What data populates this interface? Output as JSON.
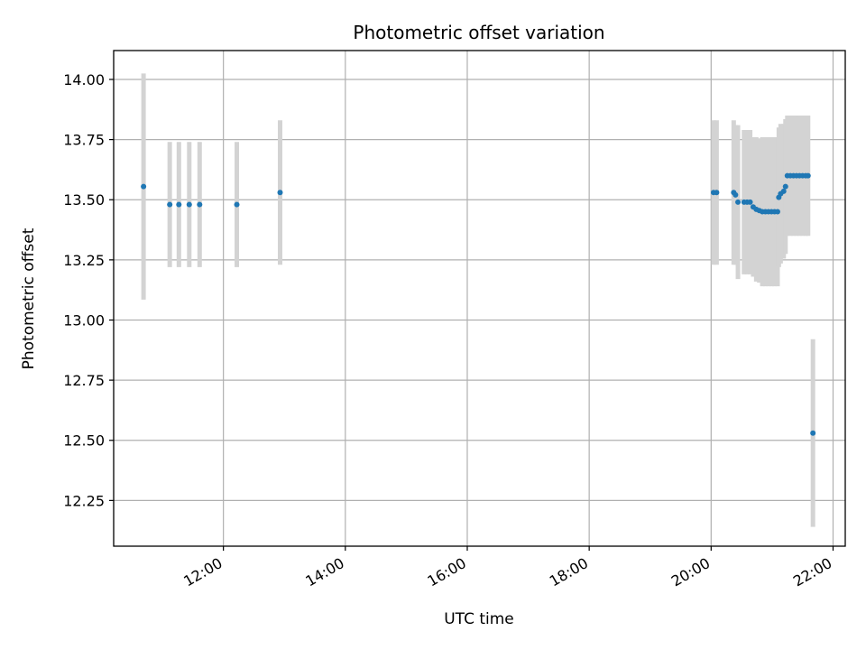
{
  "chart_data": {
    "type": "scatter",
    "title": "Photometric offset variation",
    "xlabel": "UTC time",
    "ylabel": "Photometric offset",
    "x_unit": "hours UTC",
    "xlim": [
      10.2,
      22.2
    ],
    "ylim": [
      12.06,
      14.12
    ],
    "x_ticks": [
      {
        "value": 12,
        "label": "12:00"
      },
      {
        "value": 14,
        "label": "14:00"
      },
      {
        "value": 16,
        "label": "16:00"
      },
      {
        "value": 18,
        "label": "18:00"
      },
      {
        "value": 20,
        "label": "20:00"
      },
      {
        "value": 22,
        "label": "22:00"
      }
    ],
    "y_ticks": [
      {
        "value": 12.25,
        "label": "12.25"
      },
      {
        "value": 12.5,
        "label": "12.50"
      },
      {
        "value": 12.75,
        "label": "12.75"
      },
      {
        "value": 13.0,
        "label": "13.00"
      },
      {
        "value": 13.25,
        "label": "13.25"
      },
      {
        "value": 13.5,
        "label": "13.50"
      },
      {
        "value": 13.75,
        "label": "13.75"
      },
      {
        "value": 14.0,
        "label": "14.00"
      }
    ],
    "grid": true,
    "colors": {
      "point": "#1f77b4",
      "errorbar": "#d3d3d3",
      "grid": "#b0b0b0"
    },
    "points": [
      {
        "x": 10.69,
        "y": 13.555,
        "yerr": 0.47
      },
      {
        "x": 11.12,
        "y": 13.48,
        "yerr": 0.26
      },
      {
        "x": 11.27,
        "y": 13.48,
        "yerr": 0.26
      },
      {
        "x": 11.44,
        "y": 13.48,
        "yerr": 0.26
      },
      {
        "x": 11.61,
        "y": 13.48,
        "yerr": 0.26
      },
      {
        "x": 12.22,
        "y": 13.48,
        "yerr": 0.26
      },
      {
        "x": 12.93,
        "y": 13.53,
        "yerr": 0.3
      },
      {
        "x": 20.04,
        "y": 13.53,
        "yerr": 0.3
      },
      {
        "x": 20.09,
        "y": 13.53,
        "yerr": 0.3
      },
      {
        "x": 20.37,
        "y": 13.53,
        "yerr": 0.3
      },
      {
        "x": 20.4,
        "y": 13.52,
        "yerr": 0.29
      },
      {
        "x": 20.44,
        "y": 13.49,
        "yerr": 0.32
      },
      {
        "x": 20.54,
        "y": 13.49,
        "yerr": 0.3
      },
      {
        "x": 20.59,
        "y": 13.49,
        "yerr": 0.3
      },
      {
        "x": 20.64,
        "y": 13.49,
        "yerr": 0.3
      },
      {
        "x": 20.69,
        "y": 13.47,
        "yerr": 0.29
      },
      {
        "x": 20.74,
        "y": 13.46,
        "yerr": 0.3
      },
      {
        "x": 20.79,
        "y": 13.455,
        "yerr": 0.3
      },
      {
        "x": 20.84,
        "y": 13.45,
        "yerr": 0.31
      },
      {
        "x": 20.89,
        "y": 13.45,
        "yerr": 0.31
      },
      {
        "x": 20.94,
        "y": 13.45,
        "yerr": 0.31
      },
      {
        "x": 20.99,
        "y": 13.45,
        "yerr": 0.31
      },
      {
        "x": 21.04,
        "y": 13.45,
        "yerr": 0.31
      },
      {
        "x": 21.09,
        "y": 13.45,
        "yerr": 0.31
      },
      {
        "x": 21.11,
        "y": 13.51,
        "yerr": 0.29
      },
      {
        "x": 21.14,
        "y": 13.525,
        "yerr": 0.29
      },
      {
        "x": 21.19,
        "y": 13.535,
        "yerr": 0.28
      },
      {
        "x": 21.22,
        "y": 13.555,
        "yerr": 0.28
      },
      {
        "x": 21.25,
        "y": 13.6,
        "yerr": 0.25
      },
      {
        "x": 21.3,
        "y": 13.6,
        "yerr": 0.25
      },
      {
        "x": 21.35,
        "y": 13.6,
        "yerr": 0.25
      },
      {
        "x": 21.4,
        "y": 13.6,
        "yerr": 0.25
      },
      {
        "x": 21.45,
        "y": 13.6,
        "yerr": 0.25
      },
      {
        "x": 21.5,
        "y": 13.6,
        "yerr": 0.25
      },
      {
        "x": 21.55,
        "y": 13.6,
        "yerr": 0.25
      },
      {
        "x": 21.59,
        "y": 13.6,
        "yerr": 0.25
      },
      {
        "x": 21.67,
        "y": 12.53,
        "yerr": 0.39
      }
    ]
  }
}
